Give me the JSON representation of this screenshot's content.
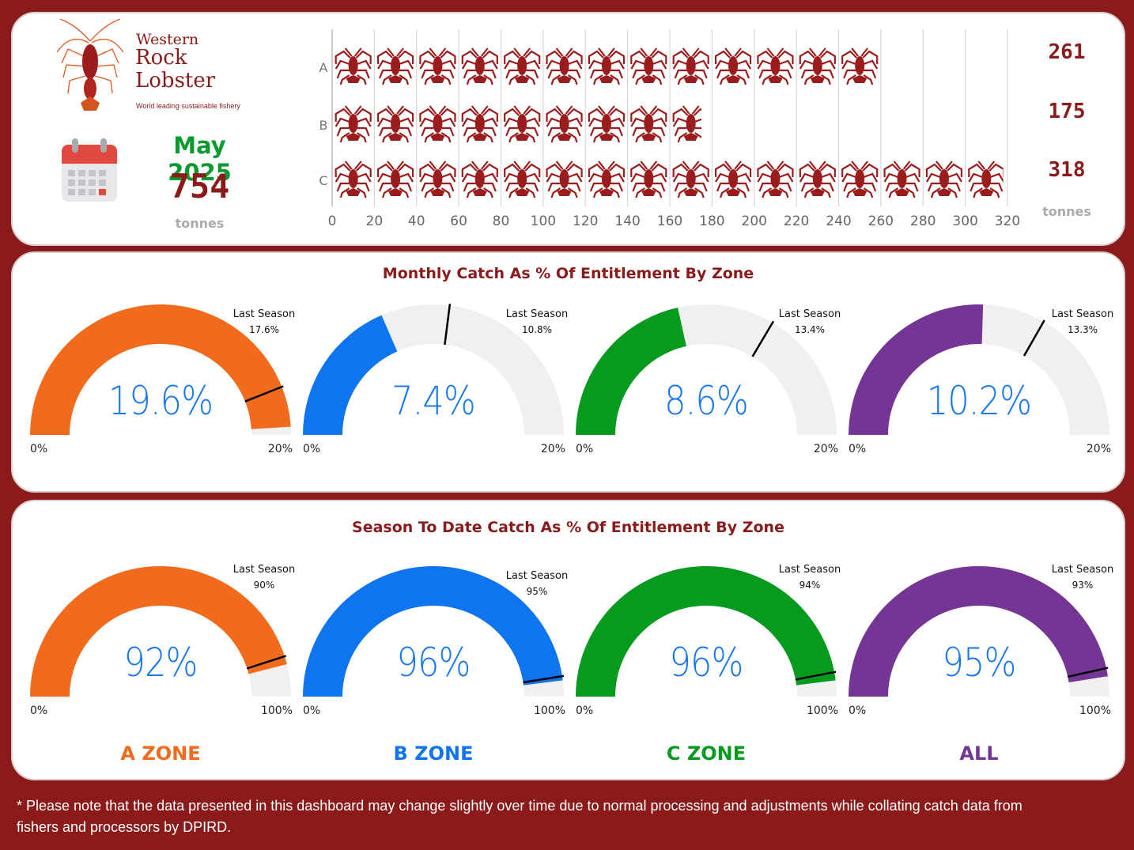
{
  "brand": {
    "line1": "Western",
    "line2": "Rock",
    "line3": "Lobster",
    "tagline": "World leading sustainable fishery"
  },
  "summary": {
    "month": "May 2025",
    "total": "754",
    "unit": "tonnes"
  },
  "icons": {
    "calendar": "calendar-icon",
    "logo": "lobster-logo-icon",
    "bar_unit": "lobster-icon"
  },
  "colors": {
    "brand": "#8b1a1a",
    "green": "#0a9a2e",
    "value_blue": "#1877f2",
    "a_zone": "#f26b1d",
    "b_zone": "#0f74f0",
    "c_zone": "#069a1f",
    "all": "#743595",
    "track": "#f1f0ef"
  },
  "chart_data": [
    {
      "type": "bar",
      "orientation": "horizontal",
      "categories": [
        "A",
        "B",
        "C"
      ],
      "values": [
        261,
        175,
        318
      ],
      "value_labels": [
        "261",
        "175",
        "318"
      ],
      "value_unit": "tonnes",
      "xlim": [
        0,
        320
      ],
      "x_ticks": [
        0,
        20,
        40,
        60,
        80,
        100,
        120,
        140,
        160,
        180,
        200,
        220,
        240,
        260,
        280,
        300,
        320
      ],
      "grid": true
    },
    {
      "type": "gauge",
      "title": "Monthly Catch As % Of Entitlement By Zone",
      "gauges": [
        {
          "value": 19.6,
          "label": "19.6%",
          "min": "0%",
          "max": "20%",
          "range": [
            0,
            20
          ],
          "target_title": "Last Season",
          "target": 17.6,
          "target_label": "17.6%"
        },
        {
          "value": 7.4,
          "label": "7.4%",
          "min": "0%",
          "max": "20%",
          "range": [
            0,
            20
          ],
          "target_title": "Last Season",
          "target": 10.8,
          "target_label": "10.8%"
        },
        {
          "value": 8.6,
          "label": "8.6%",
          "min": "0%",
          "max": "20%",
          "range": [
            0,
            20
          ],
          "target_title": "Last Season",
          "target": 13.4,
          "target_label": "13.4%"
        },
        {
          "value": 10.2,
          "label": "10.2%",
          "min": "0%",
          "max": "20%",
          "range": [
            0,
            20
          ],
          "target_title": "Last Season",
          "target": 13.3,
          "target_label": "13.3%"
        }
      ]
    },
    {
      "type": "gauge",
      "title": "Season To Date Catch As % Of Entitlement By Zone",
      "gauges": [
        {
          "value": 92,
          "label": "92%",
          "min": "0%",
          "max": "100%",
          "range": [
            0,
            100
          ],
          "target_title": "Last Season",
          "target": 90,
          "target_label": "90%"
        },
        {
          "value": 96,
          "label": "96%",
          "min": "0%",
          "max": "100%",
          "range": [
            0,
            100
          ],
          "target_title": "Last Season",
          "target": 95,
          "target_label": "95%"
        },
        {
          "value": 96,
          "label": "96%",
          "min": "0%",
          "max": "100%",
          "range": [
            0,
            100
          ],
          "target_title": "Last Season",
          "target": 94,
          "target_label": "94%"
        },
        {
          "value": 95,
          "label": "95%",
          "min": "0%",
          "max": "100%",
          "range": [
            0,
            100
          ],
          "target_title": "Last Season",
          "target": 93,
          "target_label": "93%"
        }
      ]
    }
  ],
  "zones": [
    "A ZONE",
    "B ZONE",
    "C ZONE",
    "ALL"
  ],
  "footnote": "* Please note that the data presented in this dashboard may change slightly over time due to normal processing and adjustments while collating catch data from fishers and processors by DPIRD."
}
